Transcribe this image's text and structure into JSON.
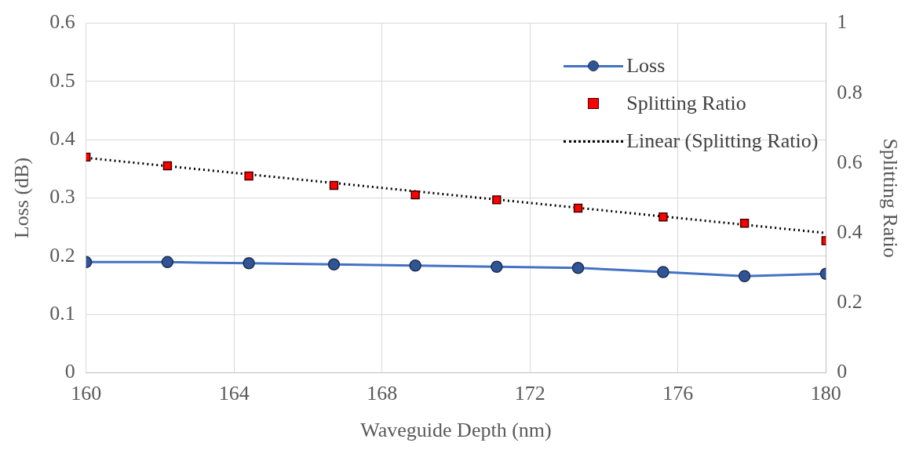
{
  "chart_data": {
    "type": "line",
    "xlabel": "Waveguide Depth (nm)",
    "ylabel": "Loss (dB)",
    "y2label": "Splitting Ratio",
    "x": [
      160,
      162.2,
      164.4,
      166.7,
      168.9,
      171.1,
      173.3,
      175.6,
      177.8,
      180
    ],
    "series": [
      {
        "name": "Loss",
        "color": "#4472c4",
        "marker": "circle",
        "values": [
          0.19,
          0.19,
          0.188,
          0.186,
          0.184,
          0.182,
          0.18,
          0.173,
          0.166,
          0.17
        ]
      },
      {
        "name": "Splitting Ratio",
        "type": "scatter",
        "axis": "y2",
        "color": "#ff0000",
        "marker": "square",
        "values": [
          0.617,
          0.592,
          0.563,
          0.536,
          0.509,
          0.495,
          0.471,
          0.446,
          0.428,
          0.378
        ]
      },
      {
        "name": "Linear (Splitting Ratio)",
        "type": "line",
        "axis": "y2",
        "color": "#000000",
        "marker": "none",
        "line_style": "dotted",
        "x": [
          160,
          180
        ],
        "values": [
          0.615,
          0.4
        ]
      }
    ],
    "xlim": [
      160,
      180
    ],
    "xticks": [
      160,
      164,
      168,
      172,
      176,
      180
    ],
    "ylim": [
      0,
      0.6
    ],
    "yticks": [
      0,
      0.1,
      0.2,
      0.3,
      0.4,
      0.5,
      0.6
    ],
    "y2lim": [
      0,
      1
    ],
    "y2ticks": [
      0,
      0.2,
      0.4,
      0.6,
      0.8,
      1
    ],
    "grid": true,
    "legend": "top right"
  }
}
